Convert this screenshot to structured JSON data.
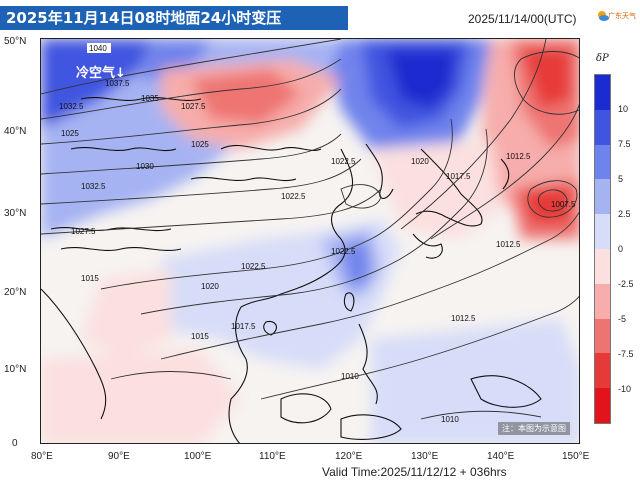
{
  "title": "2025年11月14日08时地面24小时变压",
  "model_time": "2025/11/14/00(UTC)",
  "logo": {
    "name": "广东天气",
    "accent": "#e06000"
  },
  "valid_time": "Valid Time:2025/11/12/12 + 036hrs",
  "annotation": {
    "cold_air": "冷空气↓"
  },
  "note": "注：本图为示意图",
  "map": {
    "lat_labels": [
      "50°N",
      "40°N",
      "30°N",
      "20°N",
      "10°N",
      "0"
    ],
    "lon_labels": [
      "80°E",
      "90°E",
      "100°E",
      "110°E",
      "120°E",
      "130°E",
      "140°E",
      "150°E"
    ],
    "extent": {
      "lon": [
        80,
        150
      ],
      "lat": [
        0,
        50
      ]
    },
    "contour_labels": [
      "1040",
      "1037.5",
      "1035",
      "1032.5",
      "1030",
      "1027.5",
      "1025",
      "1022.5",
      "1020",
      "1017.5",
      "1015",
      "1012.5",
      "1010",
      "1007.5"
    ]
  },
  "legend": {
    "title": "δP",
    "ticks": [
      "10",
      "7.5",
      "5",
      "2.5",
      "0",
      "-2.5",
      "-5",
      "-7.5",
      "-10"
    ],
    "colors": [
      "#1a2ccf",
      "#3f55e0",
      "#6f83ec",
      "#a6b3f3",
      "#d7ddf8",
      "#fbe0df",
      "#f6adab",
      "#ee7472",
      "#e63a38",
      "#e0141a"
    ]
  }
}
